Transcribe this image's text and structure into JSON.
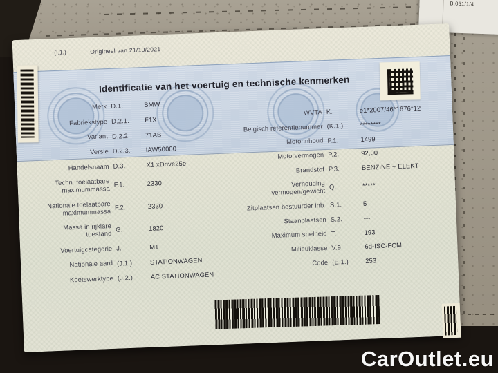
{
  "watermark": "CarOutlet.eu",
  "corner_note": {
    "code": "B.051/1/4"
  },
  "colors": {
    "band_blue": "#c9d4e2",
    "paper": "#e8e6d7",
    "surface": "#a69f91"
  },
  "document": {
    "field_ref": "(I.1.)",
    "origin_note": "Origineel van 21/10/2021",
    "title": "Identificatie van het voertuig en technische kenmerken",
    "left_fields": [
      {
        "label": "Merk",
        "code": "D.1.",
        "value": "BMW"
      },
      {
        "label": "Fabriekstype",
        "code": "D.2.1.",
        "value": "F1X"
      },
      {
        "label": "Variant",
        "code": "D.2.2.",
        "value": "71AB"
      },
      {
        "label": "Versie",
        "code": "D.2.3.",
        "value": "IAW50000"
      },
      {
        "label": "Handelsnaam",
        "code": "D.3.",
        "value": "X1 xDrive25e"
      },
      {
        "label": "Techn. toelaatbare maximummassa",
        "code": "F.1.",
        "value": "2330"
      },
      {
        "label": "Nationale toelaatbare maximummassa",
        "code": "F.2.",
        "value": "2330"
      },
      {
        "label": "Massa in rijklare toestand",
        "code": "G.",
        "value": "1820"
      },
      {
        "label": "Voertuigcategorie",
        "code": "J.",
        "value": "M1"
      },
      {
        "label": "Nationale aard",
        "code": "(J.1.)",
        "value": "STATIONWAGEN"
      },
      {
        "label": "Koetswerktype",
        "code": "(J.2.)",
        "value": "AC STATIONWAGEN"
      }
    ],
    "right_fields": [
      {
        "label": "WVTA",
        "code": "K.",
        "value": "e1*2007/46*1676*12"
      },
      {
        "label": "Belgisch referentienummer",
        "code": "(K.1.)",
        "value": "********"
      },
      {
        "label": "Motorinhoud",
        "code": "P.1.",
        "value": "1499"
      },
      {
        "label": "Motorvermogen",
        "code": "P.2.",
        "value": "92,00"
      },
      {
        "label": "Brandstof",
        "code": "P.3.",
        "value": "BENZINE + ELEKT"
      },
      {
        "label": "Verhouding vermogen/gewicht",
        "code": "Q.",
        "value": "*****"
      },
      {
        "label": "Zitplaatsen bestuurder inb.",
        "code": "S.1.",
        "value": "5"
      },
      {
        "label": "Staanplaatsen",
        "code": "S.2.",
        "value": "---"
      },
      {
        "label": "Maximum snelheid",
        "code": "T.",
        "value": "193"
      },
      {
        "label": "Milieuklasse",
        "code": "V.9.",
        "value": "6d-ISC-FCM"
      },
      {
        "label": "Code",
        "code": "(E.1.)",
        "value": "253"
      }
    ]
  }
}
